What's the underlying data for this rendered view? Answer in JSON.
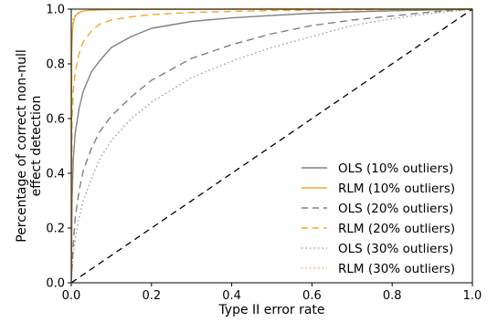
{
  "chart_data": {
    "type": "line",
    "xlabel": "Type II error rate",
    "ylabel": "Percentage of correct non-null effect detection",
    "ylabel_lines": [
      "Percentage of correct non-null",
      "effect detection"
    ],
    "xlim": [
      0.0,
      1.0
    ],
    "ylim": [
      0.0,
      1.0
    ],
    "x_ticks": [
      0.0,
      0.2,
      0.4,
      0.6,
      0.8,
      1.0
    ],
    "x_tick_labels": [
      "0.0",
      "0.2",
      "0.4",
      "0.6",
      "0.8",
      "1.0"
    ],
    "y_ticks": [
      0.0,
      0.2,
      0.4,
      0.6,
      0.8,
      1.0
    ],
    "y_tick_labels": [
      "0.0",
      "0.2",
      "0.4",
      "0.6",
      "0.8",
      "1.0"
    ],
    "grid": false,
    "legend_position": "lower-right",
    "reference_line": {
      "style": "dashed",
      "color": "#000000",
      "x": [
        0.0,
        1.0
      ],
      "y": [
        0.0,
        1.0
      ]
    },
    "series": [
      {
        "name": "OLS (10% outliers)",
        "color": "#808080",
        "dash": "solid",
        "x": [
          0.0,
          0.002,
          0.005,
          0.01,
          0.02,
          0.03,
          0.05,
          0.07,
          0.1,
          0.15,
          0.2,
          0.3,
          0.4,
          0.5,
          0.6,
          0.7,
          0.8,
          0.9,
          1.0
        ],
        "y": [
          0.0,
          0.3,
          0.45,
          0.55,
          0.64,
          0.7,
          0.77,
          0.81,
          0.86,
          0.9,
          0.93,
          0.955,
          0.968,
          0.977,
          0.985,
          0.99,
          0.994,
          0.997,
          1.0
        ]
      },
      {
        "name": "RLM (10% outliers)",
        "color": "#f0a830",
        "dash": "solid",
        "x": [
          0.0,
          0.001,
          0.003,
          0.005,
          0.01,
          0.02,
          0.03,
          0.05,
          0.1,
          0.2,
          0.5,
          1.0
        ],
        "y": [
          0.0,
          0.84,
          0.92,
          0.95,
          0.975,
          0.988,
          0.993,
          0.996,
          0.998,
          0.999,
          1.0,
          1.0
        ]
      },
      {
        "name": "OLS (20% outliers)",
        "color": "#808080",
        "dash": "dashed",
        "x": [
          0.0,
          0.005,
          0.01,
          0.02,
          0.03,
          0.05,
          0.07,
          0.1,
          0.15,
          0.2,
          0.3,
          0.4,
          0.5,
          0.6,
          0.7,
          0.8,
          0.9,
          1.0
        ],
        "y": [
          0.0,
          0.14,
          0.24,
          0.34,
          0.41,
          0.49,
          0.55,
          0.61,
          0.68,
          0.74,
          0.82,
          0.87,
          0.91,
          0.94,
          0.96,
          0.975,
          0.99,
          1.0
        ]
      },
      {
        "name": "RLM (20% outliers)",
        "color": "#f0a830",
        "dash": "dashed",
        "x": [
          0.0,
          0.002,
          0.005,
          0.01,
          0.02,
          0.03,
          0.05,
          0.07,
          0.1,
          0.15,
          0.2,
          0.3,
          0.5,
          0.7,
          1.0
        ],
        "y": [
          0.0,
          0.6,
          0.7,
          0.77,
          0.84,
          0.88,
          0.92,
          0.945,
          0.96,
          0.972,
          0.98,
          0.988,
          0.995,
          0.998,
          1.0
        ]
      },
      {
        "name": "OLS (30% outliers)",
        "color": "#909090",
        "dash": "dotted",
        "x": [
          0.0,
          0.005,
          0.01,
          0.02,
          0.03,
          0.05,
          0.07,
          0.1,
          0.15,
          0.2,
          0.3,
          0.4,
          0.5,
          0.6,
          0.7,
          0.8,
          0.9,
          1.0
        ],
        "y": [
          0.0,
          0.1,
          0.16,
          0.24,
          0.3,
          0.38,
          0.45,
          0.52,
          0.6,
          0.66,
          0.75,
          0.81,
          0.86,
          0.9,
          0.94,
          0.965,
          0.985,
          1.0
        ]
      },
      {
        "name": "RLM (30% outliers)",
        "color": "#f0a830",
        "dash": "dotted",
        "x": [
          0.0,
          0.001,
          0.003,
          0.005,
          0.01,
          0.02,
          0.03,
          0.05,
          0.1,
          0.2,
          0.5,
          1.0
        ],
        "y": [
          0.0,
          0.89,
          0.94,
          0.965,
          0.98,
          0.99,
          0.994,
          0.997,
          0.999,
          1.0,
          1.0,
          1.0
        ]
      }
    ]
  }
}
